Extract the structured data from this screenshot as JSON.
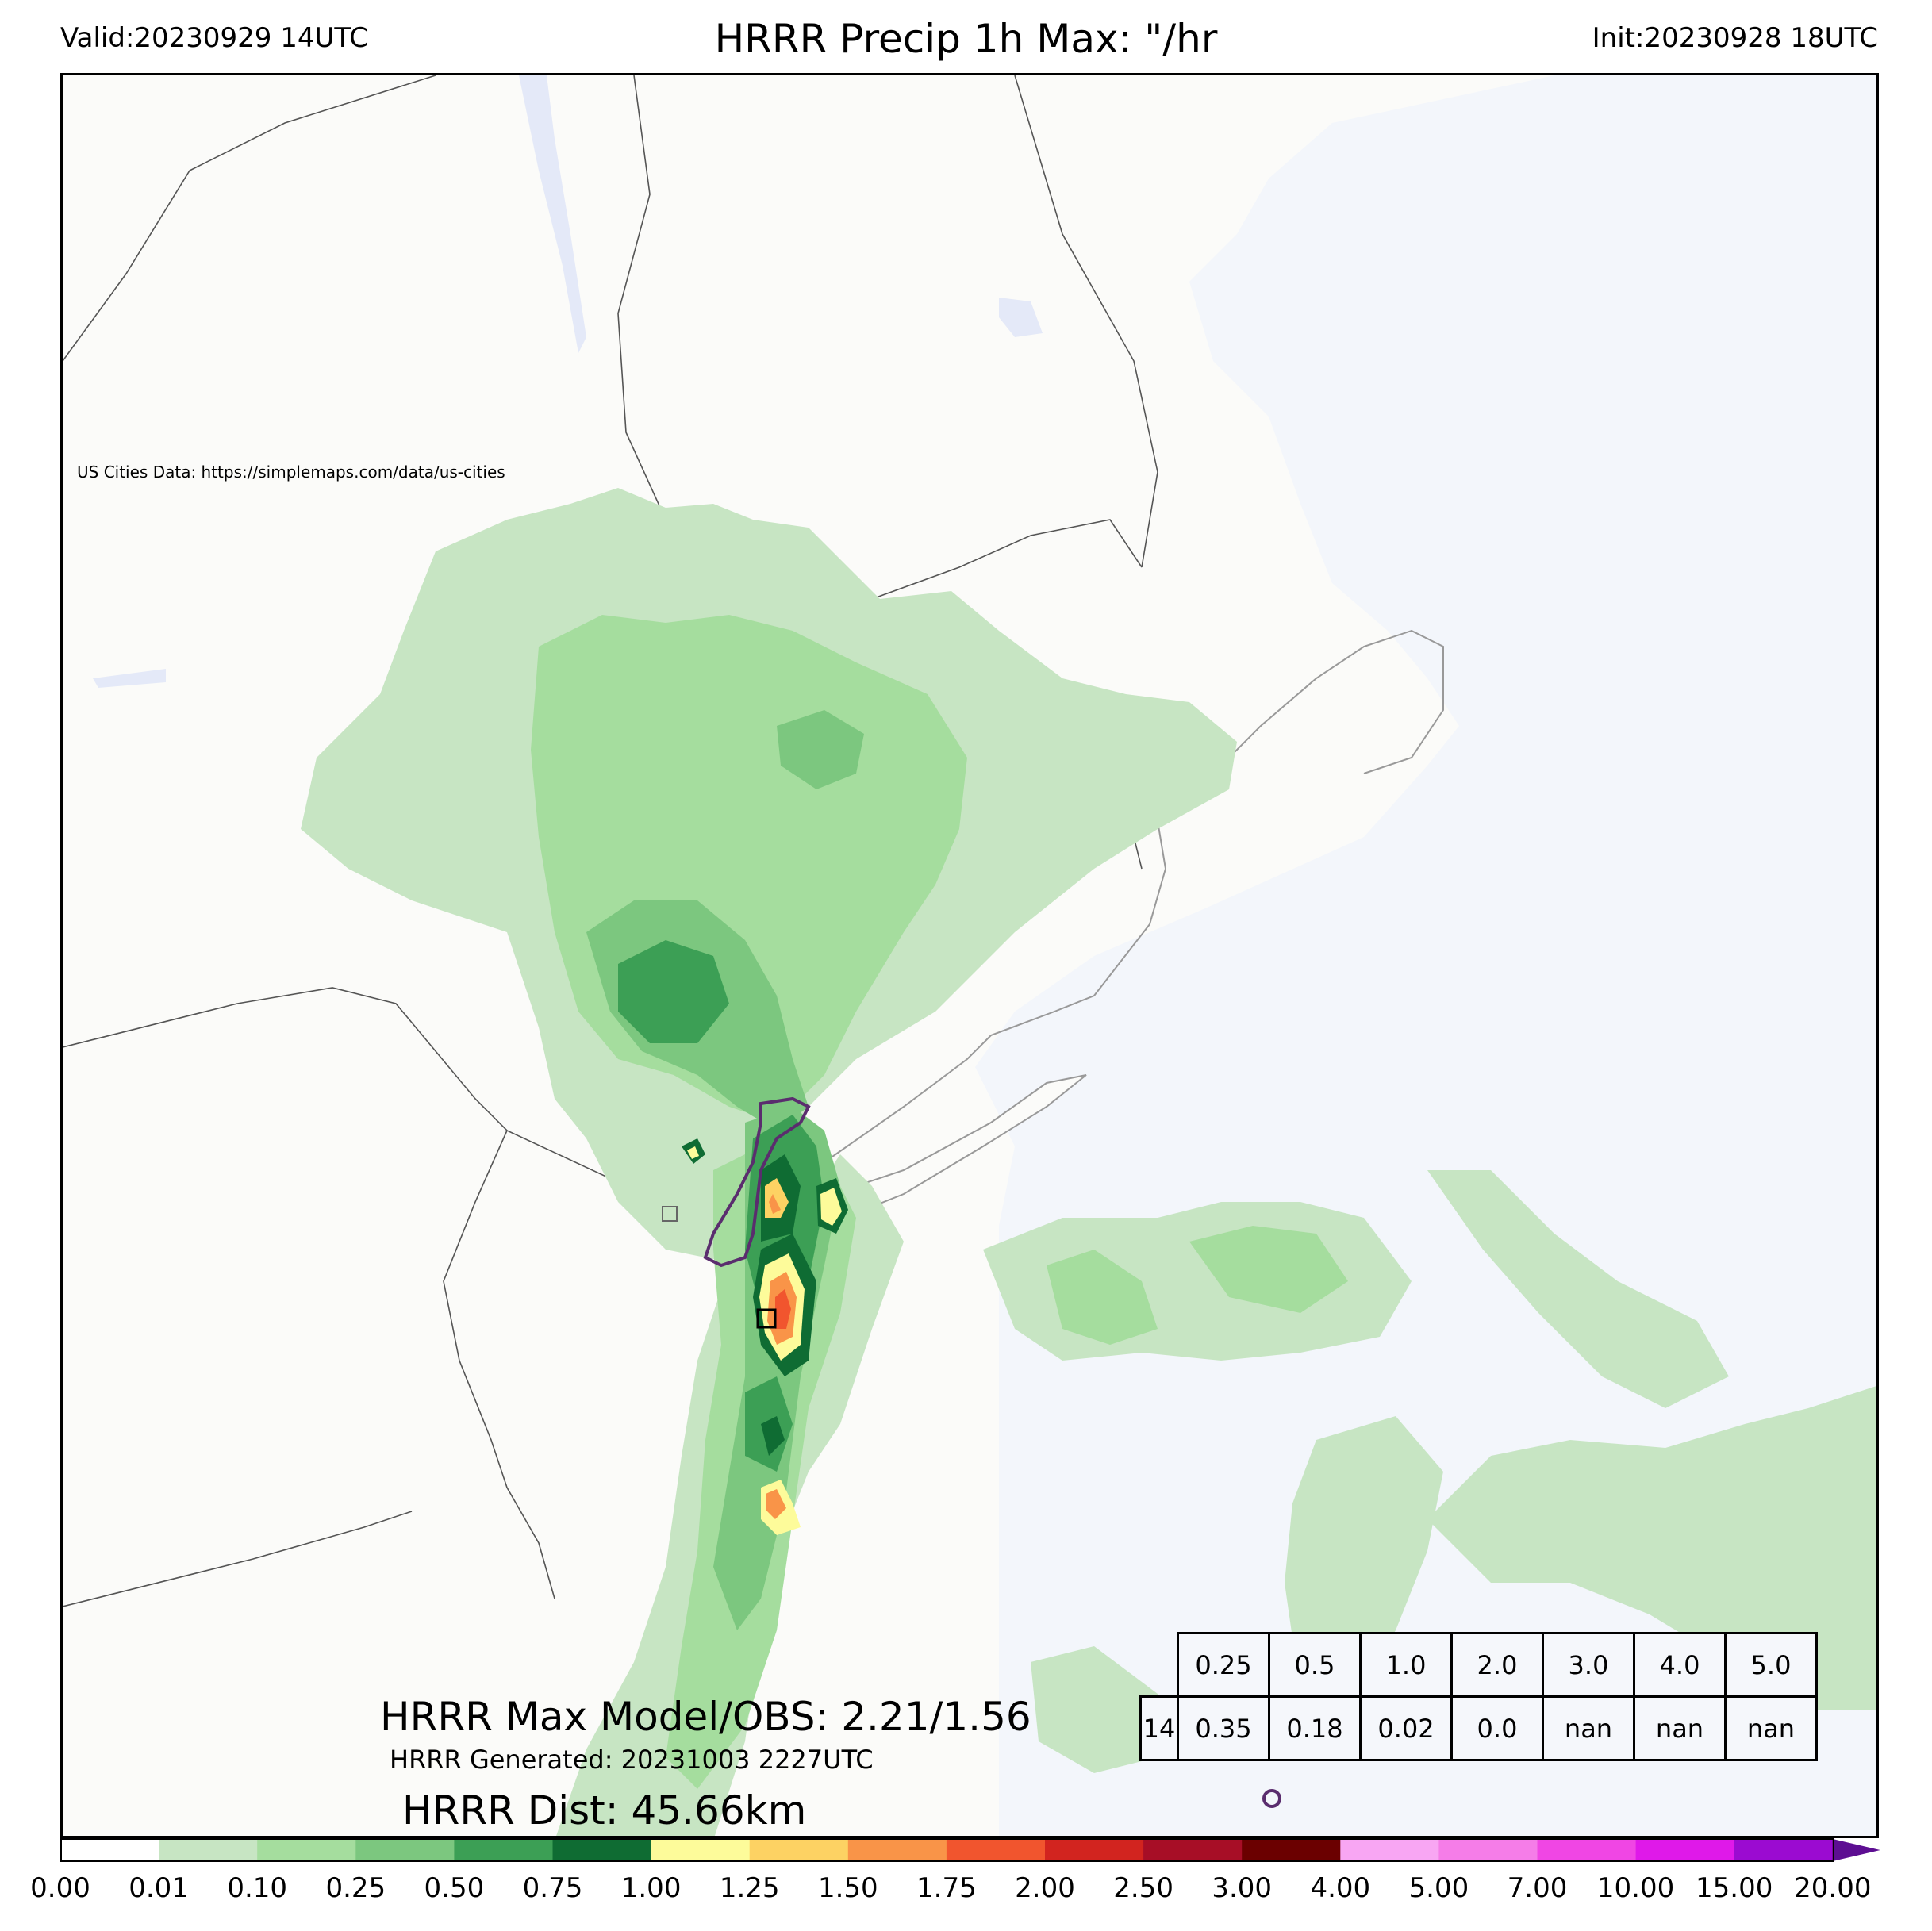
{
  "header": {
    "valid": "Valid:20230929 14UTC",
    "title": "HRRR Precip 1h Max: \"/hr",
    "init": "Init:20230928 18UTC"
  },
  "map": {
    "credit": "US Cities Data: https://simplemaps.com/data/us-cities",
    "colors": {
      "land": "#fbfbf9",
      "ocean": "#f3f6fb",
      "lake": "#e4e9f8",
      "border": "#555555",
      "obs_contour": "#5a2d6e"
    }
  },
  "stats": {
    "max_line": "HRRR Max Model/OBS: 2.21/1.56",
    "generated": "HRRR Generated: 20231003 2227UTC",
    "dist": "HRRR Dist: 45.66km"
  },
  "table": {
    "header": [
      "0.25",
      "0.5",
      "1.0",
      "2.0",
      "3.0",
      "4.0",
      "5.0"
    ],
    "first": "14",
    "values": [
      "0.35",
      "0.18",
      "0.02",
      "0.0",
      "nan",
      "nan",
      "nan"
    ]
  },
  "colorbar": {
    "ticks": [
      "0.00",
      "0.01",
      "0.10",
      "0.25",
      "0.50",
      "0.75",
      "1.00",
      "1.25",
      "1.50",
      "1.75",
      "2.00",
      "2.50",
      "3.00",
      "4.00",
      "5.00",
      "7.00",
      "10.00",
      "15.00",
      "20.00"
    ],
    "colors": [
      "#ffffff",
      "#c7e5c3",
      "#a5dd9e",
      "#7cc77f",
      "#3c9f55",
      "#0f6c33",
      "#fdfb9a",
      "#fdd263",
      "#f99448",
      "#f1552e",
      "#d2241f",
      "#a70e26",
      "#6b0000",
      "#f8a6f3",
      "#f57de8",
      "#f046e4",
      "#df19e9",
      "#9b0bd1"
    ],
    "extend_color": "#5d0e92"
  }
}
